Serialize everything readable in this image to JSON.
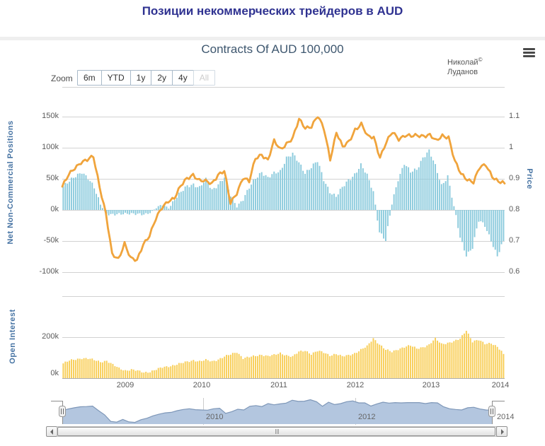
{
  "page": {
    "title": "Позиции некоммерческих трейдеров в AUD"
  },
  "chart": {
    "title": "Contracts Of AUD 100,000",
    "credits": {
      "name": "Николай",
      "copyright": "©",
      "surname": "Луданов"
    }
  },
  "toolbar": {
    "zoom_label": "Zoom",
    "buttons": [
      "6m",
      "YTD",
      "1y",
      "2y",
      "4y",
      "All"
    ],
    "disabled_button": "All"
  },
  "axes": {
    "net": {
      "title": "Net Non-Commercial Positions",
      "ticks": [
        "150k",
        "100k",
        "50k",
        "0k",
        "-50k",
        "-100k"
      ]
    },
    "price": {
      "title": "Price",
      "ticks": [
        "1.1",
        "1",
        "0.9",
        "0.8",
        "0.7",
        "0.6"
      ]
    },
    "open_interest": {
      "title": "Open Interest",
      "ticks": [
        "200k",
        "0k"
      ]
    },
    "x": {
      "ticks": [
        "2009",
        "2010",
        "2011",
        "2012",
        "2013",
        "2014"
      ]
    },
    "navigator": {
      "ticks": [
        "2010",
        "2012",
        "2014"
      ]
    }
  },
  "colors": {
    "page_title": "#2f3291",
    "chart_title": "#3e576f",
    "axis_title": "#4673a3",
    "net_bars": "#8ccbdd",
    "price_line": "#f0a43c",
    "open_interest_bars": "#f8ce57",
    "navigator_fill": "#b3c6df",
    "navigator_line": "#7e97b8",
    "gridline": "#d2d2d2"
  },
  "chart_data": [
    {
      "type": "bar",
      "panel": "main",
      "title": "Contracts Of AUD 100,000",
      "x_start": "2008-02",
      "x_end": "2014-01",
      "x_interval": "monthly",
      "xlabel": "",
      "grid": true,
      "legend_position": "none",
      "series": [
        {
          "name": "Net Non-Commercial Positions",
          "type": "column",
          "axis": "left",
          "unit": "thousand contracts",
          "ylim": [
            -100,
            150
          ],
          "values": [
            38,
            45,
            55,
            62,
            50,
            35,
            10,
            -6,
            -9,
            -7,
            -5,
            -6,
            -8,
            -7,
            -4,
            3,
            8,
            3,
            18,
            28,
            38,
            42,
            36,
            48,
            32,
            42,
            52,
            22,
            6,
            18,
            35,
            50,
            62,
            52,
            58,
            62,
            85,
            90,
            75,
            60,
            70,
            78,
            48,
            30,
            22,
            35,
            48,
            58,
            72,
            55,
            30,
            -35,
            -50,
            10,
            50,
            75,
            60,
            65,
            85,
            95,
            70,
            40,
            55,
            5,
            -45,
            -72,
            -60,
            -18,
            -25,
            -48,
            -75,
            -50
          ]
        },
        {
          "name": "Price",
          "type": "line",
          "axis": "right",
          "unit": "AUD/USD",
          "ylim": [
            0.6,
            1.1
          ],
          "values": [
            0.875,
            0.91,
            0.935,
            0.955,
            0.96,
            0.97,
            0.875,
            0.79,
            0.655,
            0.64,
            0.695,
            0.645,
            0.635,
            0.69,
            0.72,
            0.77,
            0.805,
            0.83,
            0.84,
            0.875,
            0.9,
            0.915,
            0.895,
            0.89,
            0.885,
            0.915,
            0.925,
            0.82,
            0.855,
            0.905,
            0.89,
            0.965,
            0.98,
            0.96,
            1.02,
            0.995,
            1.015,
            1.03,
            1.09,
            1.065,
            1.07,
            1.1,
            1.06,
            0.965,
            1.05,
            1.0,
            1.02,
            1.06,
            1.075,
            1.035,
            1.035,
            0.97,
            1.015,
            1.05,
            1.03,
            1.04,
            1.035,
            1.04,
            1.04,
            1.04,
            1.02,
            1.04,
            1.035,
            0.955,
            0.915,
            0.9,
            0.89,
            0.935,
            0.945,
            0.91,
            0.89,
            0.885
          ]
        }
      ]
    },
    {
      "type": "bar",
      "panel": "open_interest",
      "x_start": "2008-02",
      "x_end": "2014-01",
      "x_interval": "monthly",
      "grid": true,
      "series": [
        {
          "name": "Open Interest",
          "type": "column",
          "unit": "thousand contracts",
          "ylim": [
            0,
            400
          ],
          "values": [
            72,
            85,
            92,
            98,
            95,
            88,
            80,
            85,
            65,
            48,
            38,
            42,
            35,
            28,
            32,
            42,
            52,
            58,
            65,
            72,
            80,
            88,
            82,
            88,
            82,
            92,
            105,
            115,
            128,
            98,
            102,
            108,
            115,
            108,
            112,
            122,
            112,
            105,
            128,
            135,
            118,
            132,
            125,
            112,
            118,
            105,
            112,
            122,
            138,
            155,
            195,
            165,
            138,
            128,
            142,
            152,
            158,
            145,
            152,
            162,
            192,
            168,
            172,
            178,
            192,
            235,
            178,
            185,
            168,
            172,
            152,
            118
          ]
        }
      ]
    },
    {
      "type": "area",
      "panel": "navigator",
      "x_start": "2008-02",
      "x_end": "2014-01",
      "x_interval": "monthly",
      "series": [
        {
          "name": "Price (navigator)",
          "type": "area",
          "ylim": [
            0.6,
            1.12
          ],
          "values": [
            0.875,
            0.91,
            0.935,
            0.955,
            0.96,
            0.97,
            0.875,
            0.79,
            0.655,
            0.64,
            0.695,
            0.645,
            0.635,
            0.69,
            0.72,
            0.77,
            0.805,
            0.83,
            0.84,
            0.875,
            0.9,
            0.915,
            0.895,
            0.89,
            0.885,
            0.915,
            0.925,
            0.82,
            0.855,
            0.905,
            0.89,
            0.965,
            0.98,
            0.96,
            1.02,
            0.995,
            1.015,
            1.03,
            1.09,
            1.065,
            1.07,
            1.1,
            1.06,
            0.965,
            1.05,
            1.0,
            1.02,
            1.06,
            1.075,
            1.035,
            1.035,
            0.97,
            1.015,
            1.05,
            1.03,
            1.04,
            1.035,
            1.04,
            1.04,
            1.04,
            1.02,
            1.04,
            1.035,
            0.955,
            0.915,
            0.9,
            0.89,
            0.935,
            0.945,
            0.91,
            0.89,
            0.885
          ]
        }
      ]
    }
  ]
}
